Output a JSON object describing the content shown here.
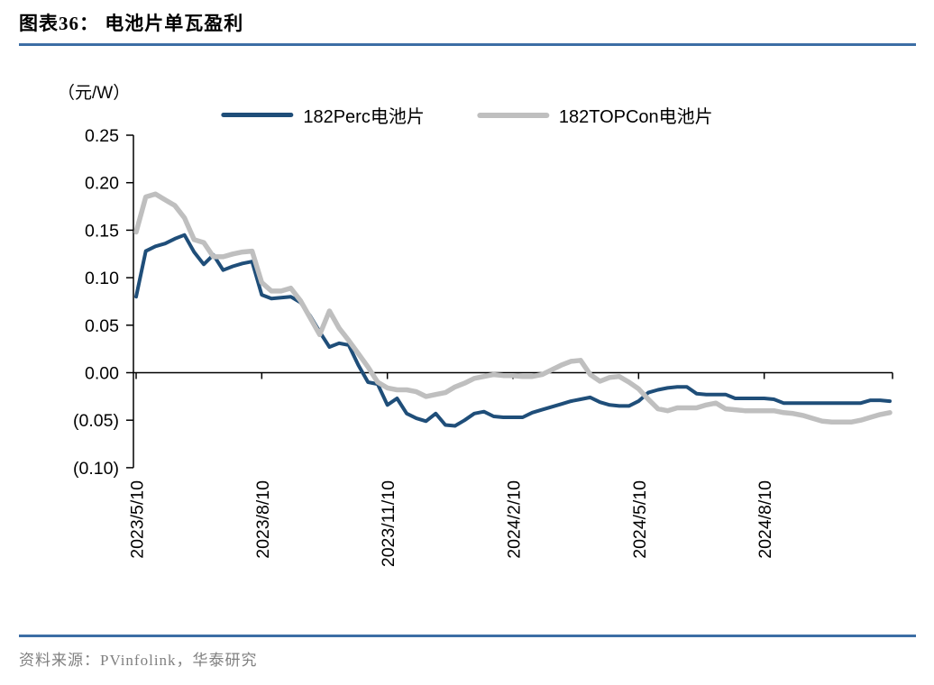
{
  "header": {
    "title": "图表36： 电池片单瓦盈利"
  },
  "footer": {
    "source": "资料来源：PVinfolink，华泰研究"
  },
  "colors": {
    "divider_blue": "#3C6EA5",
    "axis_black": "#000000",
    "source_gray": "#808080",
    "perc_blue": "#1F4E79",
    "topcon_gray": "#BFBFBF"
  },
  "chart_data": {
    "type": "line",
    "unit_label": "（元/W）",
    "legend_position": "top",
    "grid": "off",
    "ylim": [
      -0.1,
      0.25
    ],
    "y_ticks": {
      "values": [
        0.25,
        0.2,
        0.15,
        0.1,
        0.05,
        0.0,
        -0.05,
        -0.1
      ],
      "labels": [
        "0.25",
        "0.20",
        "0.15",
        "0.10",
        "0.05",
        "0.00",
        "(0.05)",
        "(0.10)"
      ]
    },
    "x_tick_labels": [
      "2023/5/10",
      "2023/8/10",
      "2023/11/10",
      "2024/2/10",
      "2024/5/10",
      "2024/8/10"
    ],
    "x_tick_indices": [
      0,
      13,
      26,
      39,
      52,
      65
    ],
    "x": [
      "2023/5/10",
      "2023/5/17",
      "2023/5/24",
      "2023/5/31",
      "2023/6/7",
      "2023/6/14",
      "2023/6/21",
      "2023/6/28",
      "2023/7/5",
      "2023/7/12",
      "2023/7/19",
      "2023/7/26",
      "2023/8/2",
      "2023/8/9",
      "2023/8/16",
      "2023/8/23",
      "2023/8/30",
      "2023/9/6",
      "2023/9/13",
      "2023/9/20",
      "2023/9/27",
      "2023/10/4",
      "2023/10/11",
      "2023/10/18",
      "2023/10/25",
      "2023/11/1",
      "2023/11/8",
      "2023/11/15",
      "2023/11/22",
      "2023/11/29",
      "2023/12/6",
      "2023/12/13",
      "2023/12/20",
      "2023/12/27",
      "2024/1/3",
      "2024/1/10",
      "2024/1/17",
      "2024/1/24",
      "2024/1/31",
      "2024/2/7",
      "2024/2/14",
      "2024/2/21",
      "2024/2/28",
      "2024/3/6",
      "2024/3/13",
      "2024/3/20",
      "2024/3/27",
      "2024/4/3",
      "2024/4/10",
      "2024/4/17",
      "2024/4/24",
      "2024/5/1",
      "2024/5/8",
      "2024/5/15",
      "2024/5/22",
      "2024/5/29",
      "2024/6/5",
      "2024/6/12",
      "2024/6/19",
      "2024/6/26",
      "2024/7/3",
      "2024/7/10",
      "2024/7/17",
      "2024/7/24",
      "2024/7/31",
      "2024/8/7",
      "2024/8/14",
      "2024/8/21",
      "2024/8/28",
      "2024/9/4",
      "2024/9/11",
      "2024/9/18",
      "2024/9/25",
      "2024/10/2",
      "2024/10/9",
      "2024/10/16",
      "2024/10/23",
      "2024/10/30",
      "2024/11/6"
    ],
    "series": [
      {
        "id": "182perc",
        "name": "182Perc电池片",
        "color": "#1F4E79",
        "width": 4,
        "values": [
          0.08,
          0.128,
          0.133,
          0.136,
          0.141,
          0.145,
          0.127,
          0.114,
          0.124,
          0.108,
          0.112,
          0.115,
          0.117,
          0.082,
          0.078,
          0.079,
          0.08,
          0.074,
          0.06,
          0.043,
          0.027,
          0.031,
          0.029,
          0.008,
          -0.01,
          -0.012,
          -0.034,
          -0.027,
          -0.043,
          -0.048,
          -0.051,
          -0.043,
          -0.055,
          -0.056,
          -0.05,
          -0.043,
          -0.041,
          -0.046,
          -0.047,
          -0.047,
          -0.047,
          -0.042,
          -0.039,
          -0.036,
          -0.033,
          -0.03,
          -0.028,
          -0.026,
          -0.031,
          -0.034,
          -0.035,
          -0.035,
          -0.03,
          -0.021,
          -0.018,
          -0.016,
          -0.015,
          -0.015,
          -0.022,
          -0.023,
          -0.023,
          -0.023,
          -0.027,
          -0.027,
          -0.027,
          -0.027,
          -0.028,
          -0.032,
          -0.032,
          -0.032,
          -0.032,
          -0.032,
          -0.032,
          -0.032,
          -0.032,
          -0.032,
          -0.029,
          -0.029,
          -0.03
        ]
      },
      {
        "id": "182topcon",
        "name": "182TOPCon电池片",
        "color": "#BFBFBF",
        "width": 5.5,
        "values": [
          0.148,
          0.185,
          0.188,
          0.182,
          0.176,
          0.163,
          0.14,
          0.137,
          0.122,
          0.122,
          0.125,
          0.127,
          0.128,
          0.095,
          0.086,
          0.086,
          0.089,
          0.076,
          0.058,
          0.04,
          0.065,
          0.047,
          0.034,
          0.02,
          0.006,
          -0.01,
          -0.016,
          -0.018,
          -0.018,
          -0.02,
          -0.025,
          -0.023,
          -0.021,
          -0.015,
          -0.011,
          -0.006,
          -0.004,
          -0.002,
          -0.003,
          -0.003,
          -0.004,
          -0.004,
          -0.002,
          0.003,
          0.008,
          0.012,
          0.013,
          -0.002,
          -0.009,
          -0.005,
          -0.004,
          -0.01,
          -0.017,
          -0.028,
          -0.038,
          -0.04,
          -0.037,
          -0.037,
          -0.037,
          -0.034,
          -0.032,
          -0.038,
          -0.039,
          -0.04,
          -0.04,
          -0.04,
          -0.04,
          -0.042,
          -0.043,
          -0.045,
          -0.048,
          -0.051,
          -0.052,
          -0.052,
          -0.052,
          -0.05,
          -0.047,
          -0.044,
          -0.042
        ]
      }
    ]
  }
}
